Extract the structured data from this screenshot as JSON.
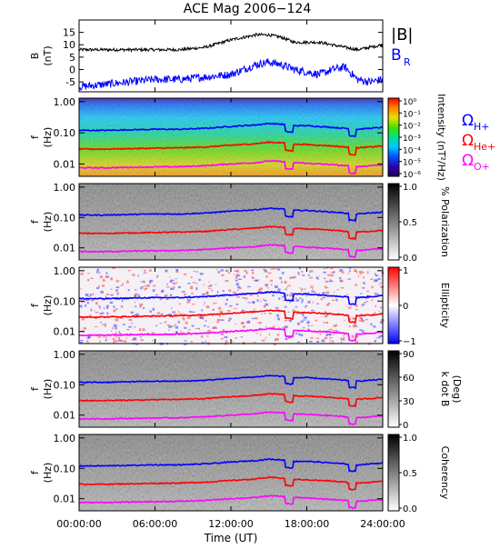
{
  "figure": {
    "title": "ACE Mag 2006−124",
    "xlabel": "Time (UT)",
    "xticks": [
      "00:00:00",
      "06:00:00",
      "12:00:00",
      "18:00:00",
      "24:00:00"
    ],
    "colors": {
      "blue": "#0000ff",
      "red": "#ff0000",
      "magenta": "#ff00ff",
      "black": "#000000"
    }
  },
  "chart_data": [
    {
      "type": "line",
      "panel": "magnetic-field",
      "ylabel": "B\n(nT)",
      "ylim": [
        -9,
        20
      ],
      "yticks": [
        15,
        10,
        5,
        0,
        -5
      ],
      "legend": [
        {
          "name": "|B|",
          "color": "#000000"
        },
        {
          "name": "B",
          "sub": "R",
          "color": "#0000ff"
        }
      ],
      "x": [
        0,
        2,
        4,
        6,
        8,
        10,
        12,
        13,
        14,
        15,
        16,
        17,
        18,
        19,
        20,
        21,
        22,
        23,
        24
      ],
      "series": [
        {
          "name": "|B|",
          "color": "#000000",
          "values": [
            8,
            8,
            8,
            8,
            8,
            9,
            12,
            13,
            14,
            14,
            13,
            11,
            11,
            11,
            10,
            9,
            8,
            9,
            10
          ]
        },
        {
          "name": "B_R",
          "color": "#0000ff",
          "values": [
            -7,
            -6,
            -5,
            -4,
            -4,
            -3,
            -2,
            0,
            2,
            3,
            2,
            0,
            -1,
            -2,
            0,
            1,
            -4,
            -5,
            -4
          ]
        }
      ]
    },
    {
      "type": "heatmap",
      "panel": "power-spectrum",
      "ylabel": "f\n(Hz)",
      "yscale": "log",
      "yticks": [
        "1.00",
        "0.10",
        "0.01"
      ],
      "colorbar": {
        "label": "Intensity (nT²/Hz)",
        "labels": [
          "10⁰",
          "10⁻¹",
          "10⁻²",
          "10⁻³",
          "10⁻⁴",
          "10⁻⁵",
          "10⁻⁶"
        ],
        "scale": "rainbow"
      },
      "curves": [
        {
          "name": "ΩH+",
          "color": "#0000ff",
          "values": [
            0.12,
            0.12,
            0.125,
            0.13,
            0.13,
            0.14,
            0.16,
            0.17,
            0.18,
            0.2,
            0.19,
            0.17,
            0.17,
            0.16,
            0.15,
            0.14,
            0.13,
            0.14,
            0.15
          ]
        },
        {
          "name": "ΩHe+",
          "color": "#ff0000",
          "values": [
            0.03,
            0.03,
            0.031,
            0.032,
            0.033,
            0.035,
            0.04,
            0.042,
            0.045,
            0.05,
            0.048,
            0.043,
            0.042,
            0.04,
            0.038,
            0.035,
            0.033,
            0.035,
            0.038
          ]
        },
        {
          "name": "ΩO+",
          "color": "#ff00ff",
          "values": [
            0.0075,
            0.0075,
            0.0078,
            0.008,
            0.0082,
            0.0088,
            0.01,
            0.0105,
            0.011,
            0.0125,
            0.012,
            0.011,
            0.0105,
            0.01,
            0.0095,
            0.0088,
            0.0082,
            0.0088,
            0.0095
          ]
        }
      ],
      "legend": [
        {
          "name": "Ω",
          "sub": "H+",
          "color": "#0000ff"
        },
        {
          "name": "Ω",
          "sub": "He+",
          "color": "#ff0000"
        },
        {
          "name": "Ω",
          "sub": "O+",
          "color": "#ff00ff"
        }
      ]
    },
    {
      "type": "heatmap",
      "panel": "polarization",
      "ylabel": "f\n(Hz)",
      "yscale": "log",
      "yticks": [
        "1.00",
        "0.10",
        "0.01"
      ],
      "colorbar": {
        "label": "% Polarization",
        "labels": [
          "1.0",
          "0.5",
          "0.0"
        ],
        "scale": "gray"
      }
    },
    {
      "type": "heatmap",
      "panel": "ellipticity",
      "ylabel": "f\n(Hz)",
      "yscale": "log",
      "yticks": [
        "1.00",
        "0.10",
        "0.01"
      ],
      "colorbar": {
        "label": "Ellipticity",
        "labels": [
          "1",
          "0",
          "−1"
        ],
        "scale": "red-white-blue"
      }
    },
    {
      "type": "heatmap",
      "panel": "k-dot-b",
      "ylabel": "f\n(Hz)",
      "yscale": "log",
      "yticks": [
        "1.00",
        "0.10",
        "0.01"
      ],
      "colorbar": {
        "label": "k dot B\n(Deg)",
        "labels": [
          "90",
          "60",
          "30",
          "0"
        ],
        "scale": "gray"
      }
    },
    {
      "type": "heatmap",
      "panel": "coherency",
      "ylabel": "f\n(Hz)",
      "yscale": "log",
      "yticks": [
        "1.00",
        "0.10",
        "0.01"
      ],
      "colorbar": {
        "label": "Coherency",
        "labels": [
          "1.0",
          "0.5",
          "0.0"
        ],
        "scale": "gray"
      }
    }
  ]
}
